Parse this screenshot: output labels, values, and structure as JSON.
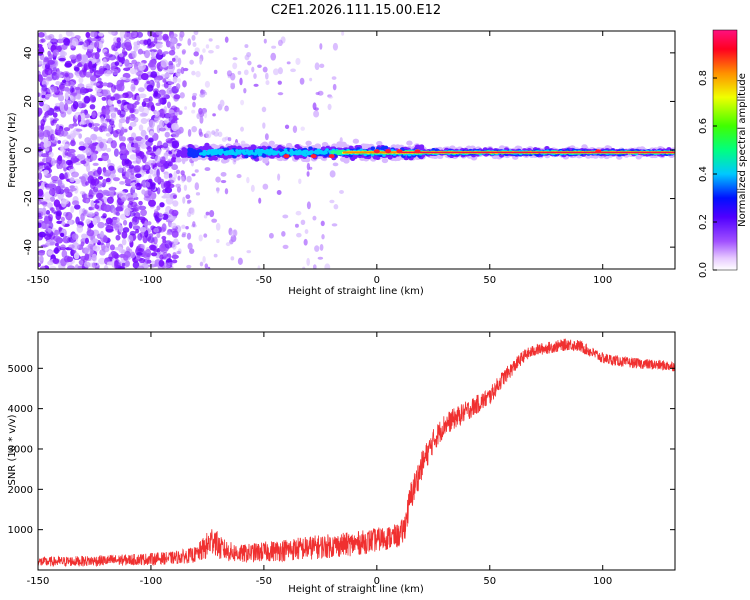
{
  "figure": {
    "title": "C2E1.2026.111.15.00.E12"
  },
  "chart_data": [
    {
      "type": "heatmap",
      "xlabel": "Height of straight line (km)",
      "ylabel": "Frequency (Hz)",
      "xlim": [
        -150,
        132
      ],
      "ylim": [
        -49,
        49
      ],
      "xticks": [
        -150,
        -100,
        -50,
        0,
        50,
        100
      ],
      "yticks": [
        -40,
        -20,
        0,
        20,
        40
      ],
      "colorbar": {
        "label": "Normalized spectral amplitude",
        "range": [
          0,
          1
        ],
        "ticks": [
          "0.0",
          "0.2",
          "0.4",
          "0.6",
          "0.8"
        ]
      },
      "features": {
        "carrier_line_freq_hz": -1,
        "noise_region_x": [
          -150,
          -88
        ],
        "sparse_region_x": [
          -88,
          -15
        ],
        "signal_start_x": -88
      }
    },
    {
      "type": "line",
      "xlabel": "Height of straight line (km)",
      "ylabel": "SNR (10 * v/v)",
      "xlim": [
        -150,
        132
      ],
      "ylim": [
        0,
        5900
      ],
      "xticks": [
        -150,
        -100,
        -50,
        0,
        50,
        100
      ],
      "yticks": [
        1000,
        2000,
        3000,
        4000,
        5000
      ],
      "series": [
        {
          "color": "#f03030",
          "x": [
            -150,
            -130,
            -110,
            -90,
            -80,
            -75,
            -72,
            -70,
            -65,
            -60,
            -50,
            -40,
            -30,
            -20,
            -10,
            0,
            5,
            10,
            12,
            15,
            20,
            25,
            30,
            40,
            50,
            55,
            60,
            65,
            70,
            80,
            85,
            90,
            95,
            100,
            110,
            120,
            132
          ],
          "y": [
            200,
            220,
            250,
            300,
            380,
            600,
            800,
            550,
            450,
            400,
            450,
            500,
            550,
            600,
            650,
            750,
            800,
            850,
            1000,
            1800,
            2600,
            3200,
            3600,
            3950,
            4300,
            4700,
            5000,
            5300,
            5450,
            5550,
            5600,
            5550,
            5400,
            5250,
            5150,
            5100,
            5050
          ],
          "noise_amplitude": [
            120,
            130,
            140,
            160,
            200,
            350,
            400,
            300,
            250,
            230,
            250,
            280,
            300,
            300,
            300,
            300,
            300,
            300,
            350,
            400,
            350,
            300,
            280,
            250,
            220,
            200,
            180,
            160,
            150,
            150,
            150,
            150,
            140,
            140,
            130,
            130,
            130
          ]
        }
      ]
    }
  ]
}
